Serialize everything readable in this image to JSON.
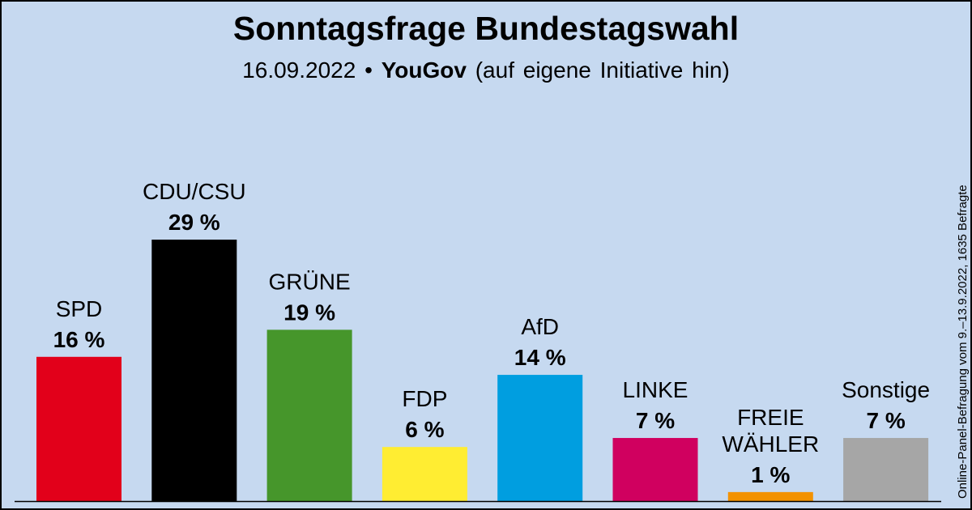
{
  "chart_data": {
    "type": "bar",
    "title": "Sonntagsfrage Bundestagswahl",
    "subtitle": {
      "date": "16.09.2022",
      "separator": "•",
      "institute": "YouGov",
      "note": "(auf eigene Initiative hin)"
    },
    "side_note": "Online-Panel-Befragung vom 9.–13.9.2022, 1635 Befragte",
    "categories": [
      "SPD",
      "CDU/CSU",
      "GRÜNE",
      "FDP",
      "AfD",
      "LINKE",
      "FREIE WÄHLER",
      "Sonstige"
    ],
    "values": [
      16,
      29,
      19,
      6,
      14,
      7,
      1,
      7
    ],
    "value_labels": [
      "16 %",
      "29 %",
      "19 %",
      "6 %",
      "14 %",
      "7 %",
      "1 %",
      "7 %"
    ],
    "colors": [
      "#e2001a",
      "#000000",
      "#46962b",
      "#ffed32",
      "#009ee0",
      "#d0005f",
      "#f39200",
      "#a6a6a6"
    ],
    "unit": "%",
    "ylim": [
      0,
      29
    ],
    "grid": false,
    "legend": "none"
  }
}
